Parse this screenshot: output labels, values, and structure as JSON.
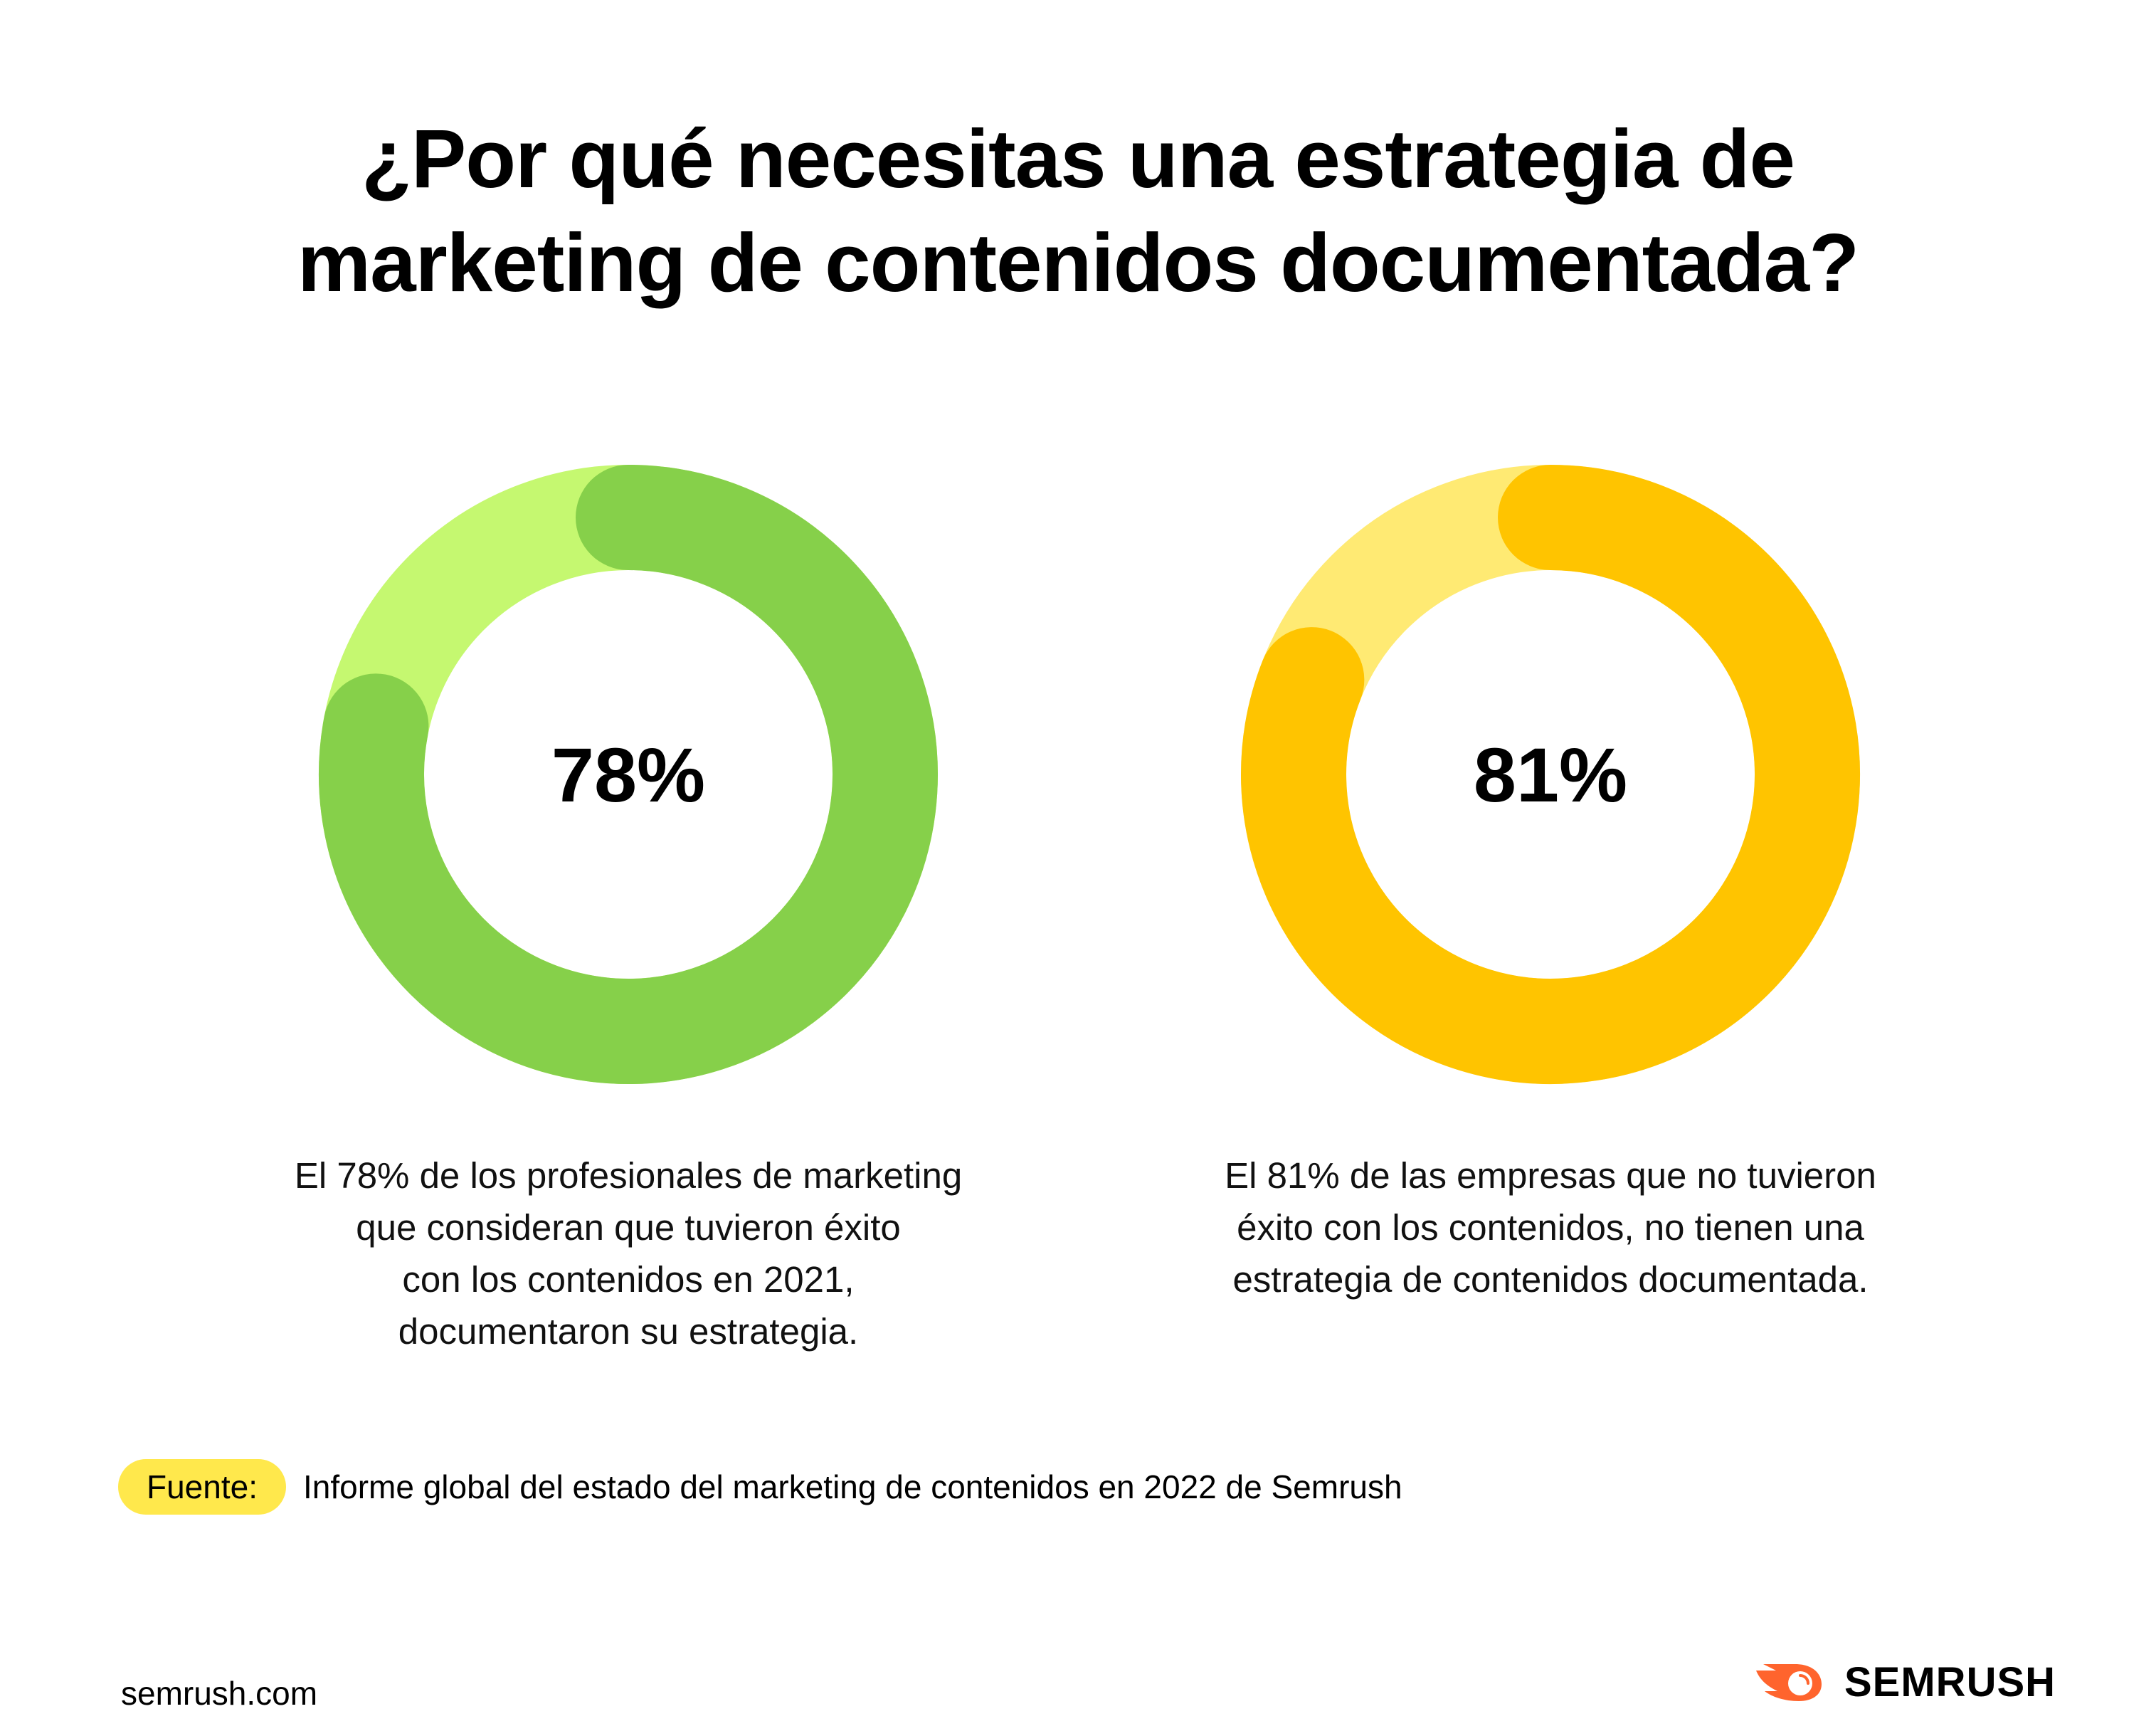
{
  "title_lines": [
    "¿Por qué necesitas una estrategia de",
    "marketing de contenidos documentada?"
  ],
  "chart_data": [
    {
      "type": "pie",
      "variant": "donut",
      "values": [
        78,
        22
      ],
      "label": "78%",
      "colors": {
        "value": "#86d04a",
        "remainder": "#c5f870"
      },
      "description": [
        "El 78% de los profesionales de marketing",
        "que consideran que tuvieron éxito",
        "con los contenidos en 2021,",
        "documentaron su estrategia."
      ]
    },
    {
      "type": "pie",
      "variant": "donut",
      "values": [
        81,
        19
      ],
      "label": "81%",
      "colors": {
        "value": "#ffc400",
        "remainder": "#ffea73"
      },
      "description": [
        "El 81% de las empresas que no tuvieron",
        "éxito con los contenidos, no tienen una",
        "estrategia de contenidos documentada."
      ]
    }
  ],
  "source": {
    "label": "Fuente:",
    "text": "Informe global del estado del marketing de contenidos en 2022 de Semrush",
    "pill_color": "#ffe84c"
  },
  "footer": {
    "site": "semrush.com",
    "logo_text": "SEMRUSH",
    "logo_color": "#ff642d",
    "logo_icon": "semrush-flame-icon"
  }
}
